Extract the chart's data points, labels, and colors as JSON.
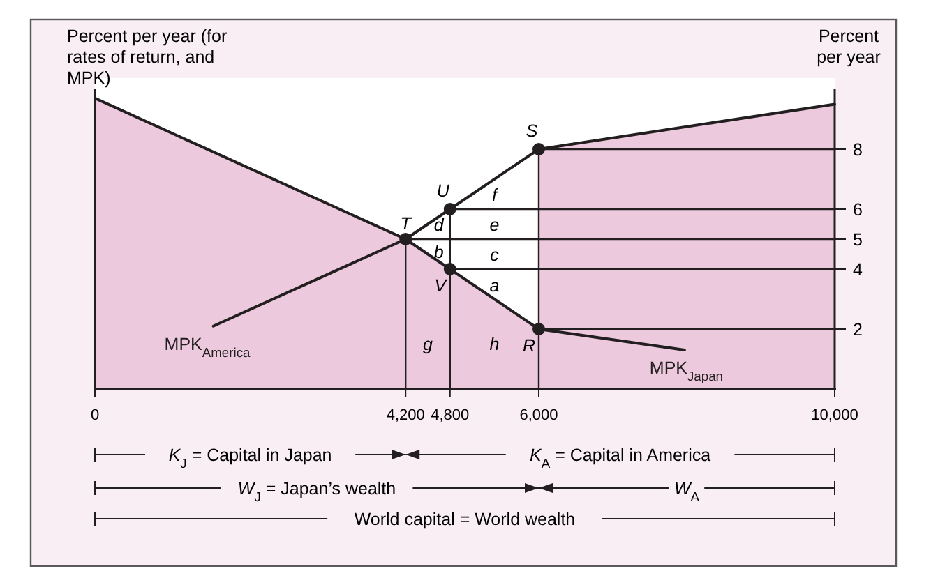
{
  "chart_data": {
    "type": "line",
    "ylabel": "Percent per year (for rates of return, and MPK)",
    "y2label": "Percent per year",
    "xlim": [
      0,
      10000
    ],
    "xticks": [
      0,
      {
        "value": 4200,
        "label": "4,200"
      },
      {
        "value": 4800,
        "label": "4,800"
      },
      {
        "value": 6000,
        "label": "6,000"
      },
      {
        "value": 10000,
        "label": "10,000"
      }
    ],
    "ylim": [
      0,
      10
    ],
    "yticks": [
      2,
      4,
      5,
      6,
      8
    ],
    "grid": false,
    "legend": false,
    "series": [
      {
        "type": "area",
        "color": "#ecc9dc",
        "x": [
          0,
          4200,
          4800,
          6000
        ],
        "values": [
          9.7,
          5,
          4,
          2
        ]
      },
      {
        "type": "area",
        "color": "#ecc9dc",
        "x": [
          6000,
          10000
        ],
        "values": [
          8,
          9.5
        ]
      },
      {
        "type": "line",
        "color": "#231f20",
        "x": [
          6000,
          10000
        ],
        "values": [
          8,
          8
        ]
      },
      {
        "type": "line",
        "color": "#231f20",
        "x": [
          4800,
          10000
        ],
        "values": [
          6,
          6
        ]
      },
      {
        "type": "line",
        "color": "#231f20",
        "x": [
          4200,
          10000
        ],
        "values": [
          5,
          5
        ]
      },
      {
        "type": "line",
        "color": "#231f20",
        "x": [
          4800,
          10000
        ],
        "values": [
          4,
          4
        ]
      },
      {
        "type": "line",
        "color": "#231f20",
        "x": [
          6000,
          10000
        ],
        "values": [
          2,
          2
        ]
      },
      {
        "type": "line",
        "color": "#231f20",
        "x": [
          4200,
          4200
        ],
        "values": [
          0,
          5
        ]
      },
      {
        "type": "line",
        "color": "#231f20",
        "x": [
          4800,
          4800
        ],
        "values": [
          0,
          6
        ]
      },
      {
        "type": "line",
        "color": "#231f20",
        "x": [
          6000,
          6000
        ],
        "values": [
          0,
          8
        ]
      },
      {
        "type": "line",
        "name": "MPK$_{America}$",
        "color": "#231f20",
        "x": [
          1600,
          4200,
          4800,
          6000,
          10000
        ],
        "values": [
          2.1,
          5,
          6,
          8,
          9.5
        ]
      },
      {
        "type": "line",
        "name": "MPK$_{Japan}$",
        "color": "#231f20",
        "x": [
          0,
          4200,
          4800,
          6000,
          7970
        ],
        "values": [
          9.7,
          5,
          4,
          2,
          1.3
        ]
      },
      {
        "type": "scatter",
        "marker": "circle",
        "color": "#231f20",
        "x": [
          4200,
          4800,
          4800,
          6000,
          6000
        ],
        "values": [
          5,
          6,
          4,
          8,
          2
        ]
      }
    ],
    "annotations": [
      {
        "text": "T",
        "x": 4200,
        "y": 5
      },
      {
        "text": "U",
        "x": 4800,
        "y": 6
      },
      {
        "text": "V",
        "x": 4800,
        "y": 4
      },
      {
        "text": "S",
        "x": 6000,
        "y": 8
      },
      {
        "text": "R",
        "x": 6000,
        "y": 2
      },
      "f",
      "e",
      "c",
      "a",
      "d",
      "b",
      "g",
      "h",
      "K$_{J}$ = Capital in Japan",
      "K$_{A}$ = Capital in America",
      "W$_{J}$ = Japan’s wealth",
      "W$_{A}$",
      "World capital = World wealth"
    ]
  }
}
